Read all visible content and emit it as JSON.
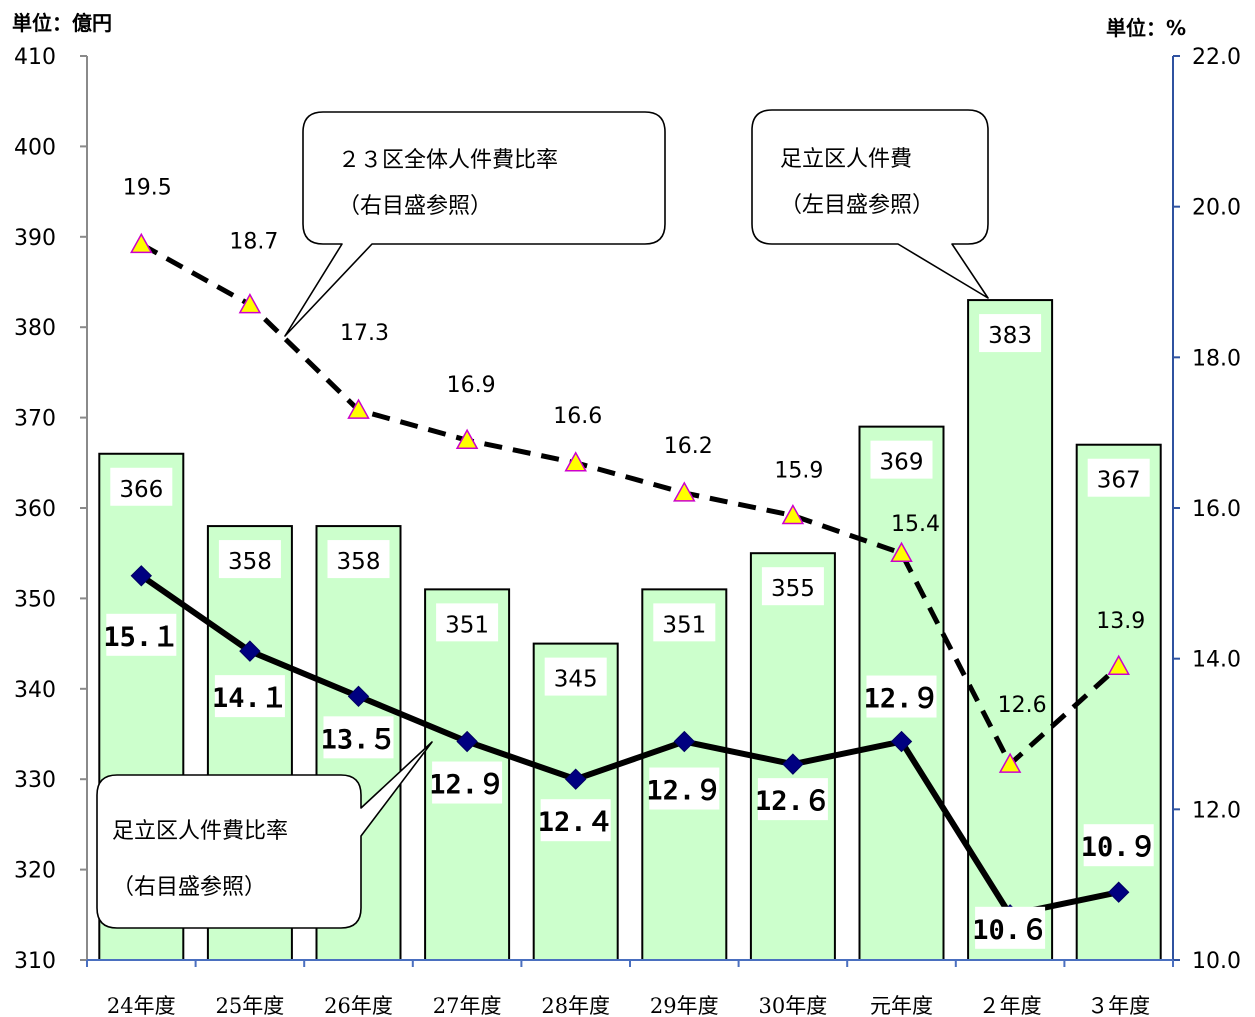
{
  "chart_data": {
    "type": "bar",
    "categories": [
      "24年度",
      "25年度",
      "26年度",
      "27年度",
      "28年度",
      "29年度",
      "30年度",
      "元年度",
      "２年度",
      "３年度"
    ],
    "left_axis": {
      "unit_label": "単位：億円",
      "range": [
        310,
        410
      ],
      "ticks": [
        310,
        320,
        330,
        340,
        350,
        360,
        370,
        380,
        390,
        400,
        410
      ]
    },
    "right_axis": {
      "unit_label": "単位：%",
      "range": [
        10.0,
        22.0
      ],
      "ticks": [
        "10.0",
        "12.0",
        "14.0",
        "16.0",
        "18.0",
        "20.0",
        "22.0"
      ]
    },
    "series": [
      {
        "type": "bar",
        "axis": "left",
        "color": "#ccffcc",
        "values": [
          366,
          358,
          358,
          351,
          345,
          351,
          355,
          369,
          383,
          367
        ],
        "labels": [
          "366",
          "358",
          "358",
          "351",
          "345",
          "351",
          "355",
          "369",
          "383",
          "367"
        ]
      },
      {
        "type": "line",
        "axis": "right",
        "color": "#000000",
        "marker_color": "#000080",
        "values": [
          15.1,
          14.1,
          13.5,
          12.9,
          12.4,
          12.9,
          12.6,
          12.9,
          10.6,
          10.9
        ],
        "labels": [
          "15.１",
          "14.１",
          "13.５",
          "12.９",
          "12.４",
          "12.９",
          "12.６",
          "12.９",
          "10.６",
          "10.９"
        ]
      },
      {
        "type": "line",
        "axis": "right",
        "dashed": true,
        "color": "#000000",
        "marker_color": "#ffff00",
        "values": [
          19.5,
          18.7,
          17.3,
          16.9,
          16.6,
          16.2,
          15.9,
          15.4,
          12.6,
          13.9
        ],
        "labels": [
          "19.5",
          "18.7",
          "17.3",
          "16.9",
          "16.6",
          "16.2",
          "15.9",
          "15.4",
          "12.6",
          "13.9"
        ]
      }
    ],
    "annotations": [
      {
        "id": "callout-23ku",
        "lines": [
          "２３区全体人件費比率",
          "（右目盛参照）"
        ]
      },
      {
        "id": "callout-adachi-cost",
        "lines": [
          "足立区人件費",
          "（左目盛参照）"
        ]
      },
      {
        "id": "callout-adachi-ratio",
        "lines": [
          "足立区人件費比率",
          "（右目盛参照）"
        ]
      }
    ]
  }
}
